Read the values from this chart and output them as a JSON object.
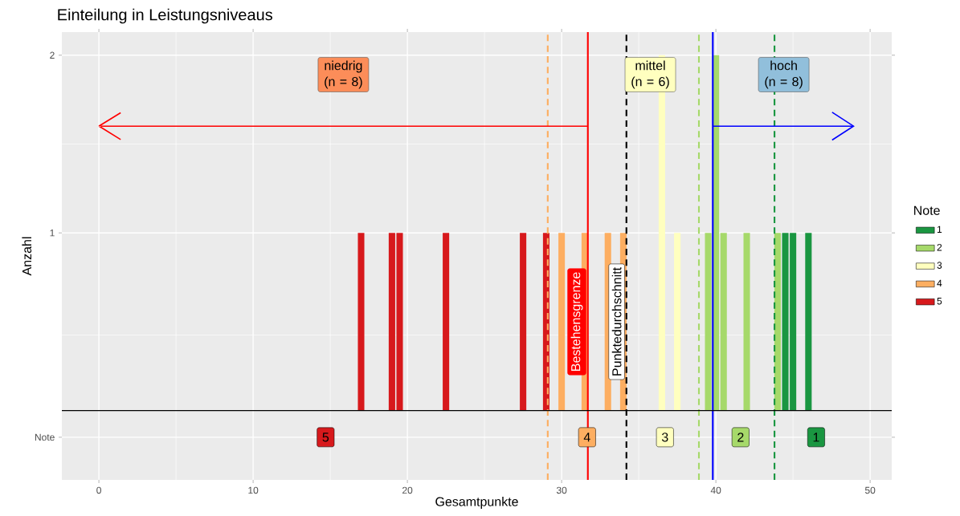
{
  "chart_data": {
    "type": "bar",
    "title": "Einteilung in Leistungsniveaus",
    "xlabel": "Gesamtpunkte",
    "ylabel": "Anzahl",
    "legend_title": "Note",
    "series": [
      {
        "name": "1",
        "color": "#1a9641",
        "x": [
          44.5,
          45,
          46
        ],
        "values": [
          1,
          1,
          1
        ]
      },
      {
        "name": "2",
        "color": "#a6d96a",
        "x": [
          39.5,
          40,
          40.5,
          42,
          44
        ],
        "values": [
          1,
          2,
          1,
          1,
          1
        ]
      },
      {
        "name": "3",
        "color": "#ffffbf",
        "x": [
          36.5,
          37.5
        ],
        "values": [
          2,
          1
        ]
      },
      {
        "name": "4",
        "color": "#fdae61",
        "x": [
          30,
          31.5,
          33,
          34
        ],
        "values": [
          1,
          1,
          1,
          1
        ]
      },
      {
        "name": "5",
        "color": "#d7191c",
        "x": [
          17,
          19,
          19.5,
          22.5,
          27.5,
          29
        ],
        "values": [
          1,
          1,
          1,
          1,
          1,
          1
        ]
      }
    ],
    "xlim": [
      -2.4,
      51.4
    ],
    "xticks": [
      0,
      10,
      20,
      30,
      40,
      50
    ],
    "ylim": [
      -0.39,
      2.13
    ],
    "yticks": [
      {
        "value": -0.15,
        "label": "Note"
      },
      1,
      2
    ],
    "ref_lines": [
      {
        "axis": "x",
        "value": 29.1,
        "color": "#fdae61",
        "line_style": "dashed"
      },
      {
        "axis": "x",
        "value": 31.7,
        "label": "Bestehensgrenze",
        "color": "#ff0000"
      },
      {
        "axis": "x",
        "value": 34.2,
        "label": "Punktedurchschnitt",
        "color": "#000000",
        "line_style": "dashed"
      },
      {
        "axis": "x",
        "value": 38.9,
        "color": "#a6d96a",
        "line_style": "dashed"
      },
      {
        "axis": "x",
        "value": 39.8,
        "color": "#0000ff"
      },
      {
        "axis": "x",
        "value": 43.8,
        "color": "#1a9641",
        "line_style": "dashed"
      },
      {
        "axis": "y",
        "value": 0,
        "color": "#000000"
      }
    ],
    "annotations": [
      "niedrig (n = 8)",
      "mittel (n = 6)",
      "hoch (n = 8)",
      {
        "text": "5",
        "x": 14.7,
        "y": -0.15
      },
      {
        "text": "4",
        "x": 31.65,
        "y": -0.15
      },
      {
        "text": "3",
        "x": 36.7,
        "y": -0.15
      },
      {
        "text": "2",
        "x": 41.6,
        "y": -0.15
      },
      {
        "text": "1",
        "x": 46.5,
        "y": -0.15
      }
    ],
    "grid": true,
    "legend": "right"
  }
}
